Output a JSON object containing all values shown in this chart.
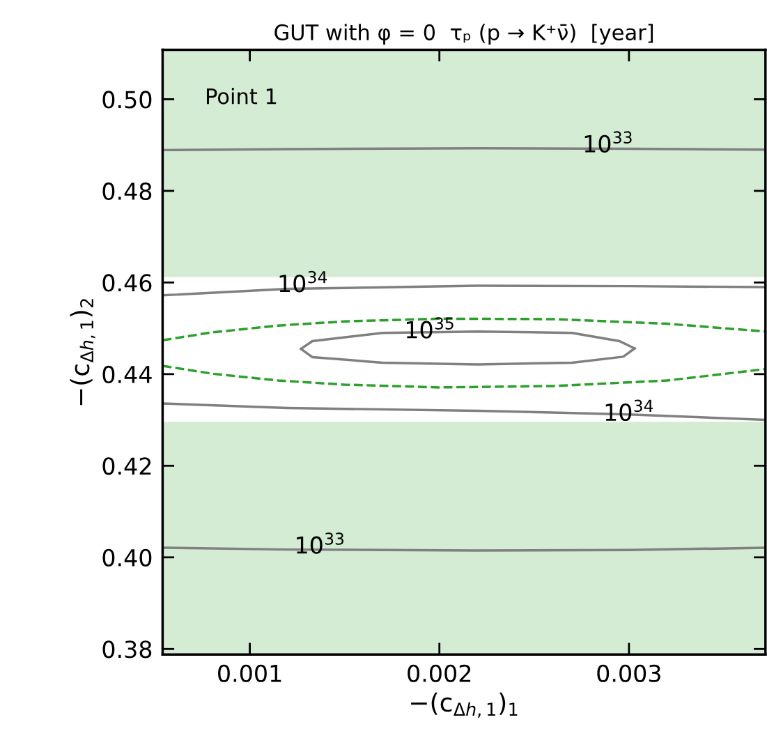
{
  "chart_data": {
    "type": "line",
    "title": "GUT with φ = 0  τₚ (p → K⁺ν̄)  [year]",
    "xlabel": "−(c$_{Δh,1}$)$_{1}$",
    "ylabel": "−(c$_{Δh,1}$)$_{2}$",
    "xlim": [
      0.00054,
      0.00372
    ],
    "ylim": [
      0.3788,
      0.5108
    ],
    "xticks": [
      0.001,
      0.002,
      0.003
    ],
    "yticks": [
      {
        "value": 0.38,
        "label": "0.38"
      },
      {
        "value": 0.4,
        "label": "0.40"
      },
      {
        "value": 0.42,
        "label": "0.42"
      },
      {
        "value": 0.44,
        "label": "0.44"
      },
      {
        "value": 0.46,
        "label": "0.46"
      },
      {
        "value": 0.48,
        "label": "0.48"
      },
      {
        "value": 0.5,
        "label": "0.50"
      }
    ],
    "grid": false,
    "legend": false,
    "marker": "none",
    "bands": [
      {
        "axis": "y",
        "from": 0.3788,
        "to": 0.4296,
        "color": "#d4ebd4"
      },
      {
        "axis": "y",
        "from": 0.4612,
        "to": 0.5108,
        "color": "#d4ebd4"
      }
    ],
    "series": [
      {
        "color": "#808080",
        "line_style": "solid",
        "x": [
          0.00054,
          0.0012,
          0.0022,
          0.003,
          0.00372
        ],
        "values": [
          0.4889,
          0.4891,
          0.4893,
          0.4892,
          0.489
        ]
      },
      {
        "color": "#808080",
        "line_style": "solid",
        "x": [
          0.00054,
          0.0012,
          0.0022,
          0.003,
          0.00372
        ],
        "values": [
          0.4572,
          0.4586,
          0.4593,
          0.4592,
          0.459
        ]
      },
      {
        "color": "#808080",
        "line_style": "solid",
        "x": [
          0.00127,
          0.00133,
          0.0017,
          0.0022,
          0.0027,
          0.00295,
          0.00303
        ],
        "values": [
          0.4455,
          0.4472,
          0.449,
          0.4493,
          0.449,
          0.4472,
          0.4456
        ]
      },
      {
        "color": "#808080",
        "line_style": "solid",
        "x": [
          0.00127,
          0.00133,
          0.0017,
          0.0022,
          0.0027,
          0.00297,
          0.00303
        ],
        "values": [
          0.4455,
          0.4437,
          0.4425,
          0.4421,
          0.4425,
          0.4438,
          0.4456
        ]
      },
      {
        "color": "#808080",
        "line_style": "solid",
        "x": [
          0.00054,
          0.0012,
          0.0022,
          0.003,
          0.00372
        ],
        "values": [
          0.4336,
          0.4326,
          0.432,
          0.4312,
          0.43
        ]
      },
      {
        "color": "#808080",
        "line_style": "solid",
        "x": [
          0.00054,
          0.0012,
          0.0022,
          0.003,
          0.00372
        ],
        "values": [
          0.4021,
          0.4017,
          0.4015,
          0.4016,
          0.4021
        ]
      },
      {
        "color": "#2ca02c",
        "line_style": "dashed",
        "x": [
          0.00054,
          0.0008,
          0.00115,
          0.0015,
          0.002,
          0.0026,
          0.0032,
          0.00372
        ],
        "values": [
          0.4474,
          0.4491,
          0.4506,
          0.4515,
          0.4521,
          0.452,
          0.451,
          0.4493
        ]
      },
      {
        "color": "#2ca02c",
        "line_style": "dashed",
        "x": [
          0.00054,
          0.0008,
          0.00115,
          0.0015,
          0.002,
          0.0026,
          0.0032,
          0.00372
        ],
        "values": [
          0.4418,
          0.4401,
          0.4386,
          0.4377,
          0.4371,
          0.4374,
          0.4386,
          0.4411
        ]
      }
    ],
    "annotations": [
      "Point 1",
      {
        "text": "10$^{33}$",
        "x": 0.00289,
        "y": 0.4898
      },
      {
        "text": "10$^{34}$",
        "x": 0.00128,
        "y": 0.4593
      },
      {
        "text": "10$^{35}$",
        "x": 0.00195,
        "y": 0.4492
      },
      {
        "text": "10$^{34}$",
        "x": 0.003,
        "y": 0.4312
      },
      {
        "text": "10$^{33}$",
        "x": 0.00137,
        "y": 0.4022
      }
    ]
  }
}
